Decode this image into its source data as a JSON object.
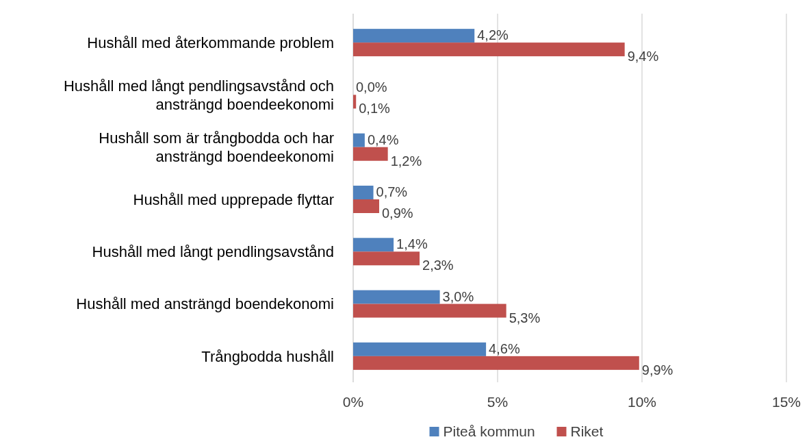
{
  "chart_data": {
    "type": "bar",
    "orientation": "horizontal",
    "categories": [
      "Hushåll med återkommande problem",
      "Hushåll med långt pendlingsavstånd och ansträngd boendeekonomi",
      "Hushåll som är trångbodda och har ansträngd boendeekonomi",
      "Hushåll med upprepade flyttar",
      "Hushåll med långt pendlingsavstånd",
      "Hushåll med ansträngd boendekonomi",
      "Trångbodda hushåll"
    ],
    "series": [
      {
        "name": "Piteå kommun",
        "color": "#4f81bd",
        "values": [
          4.2,
          0.0,
          0.4,
          0.7,
          1.4,
          3.0,
          4.6
        ],
        "value_labels": [
          "4,2%",
          "0,0%",
          "0,4%",
          "0,7%",
          "1,4%",
          "3,0%",
          "4,6%"
        ]
      },
      {
        "name": "Riket",
        "color": "#c0504d",
        "values": [
          9.4,
          0.1,
          1.2,
          0.9,
          2.3,
          5.3,
          9.9
        ],
        "value_labels": [
          "9,4%",
          "0,1%",
          "1,2%",
          "0,9%",
          "2,3%",
          "5,3%",
          "9,9%"
        ]
      }
    ],
    "xlim": [
      0,
      15
    ],
    "xticks": [
      {
        "value": 0,
        "label": "0%"
      },
      {
        "value": 5,
        "label": "5%"
      },
      {
        "value": 10,
        "label": "10%"
      },
      {
        "value": 15,
        "label": "15%"
      }
    ],
    "grid": "x",
    "legend": "bottom"
  }
}
